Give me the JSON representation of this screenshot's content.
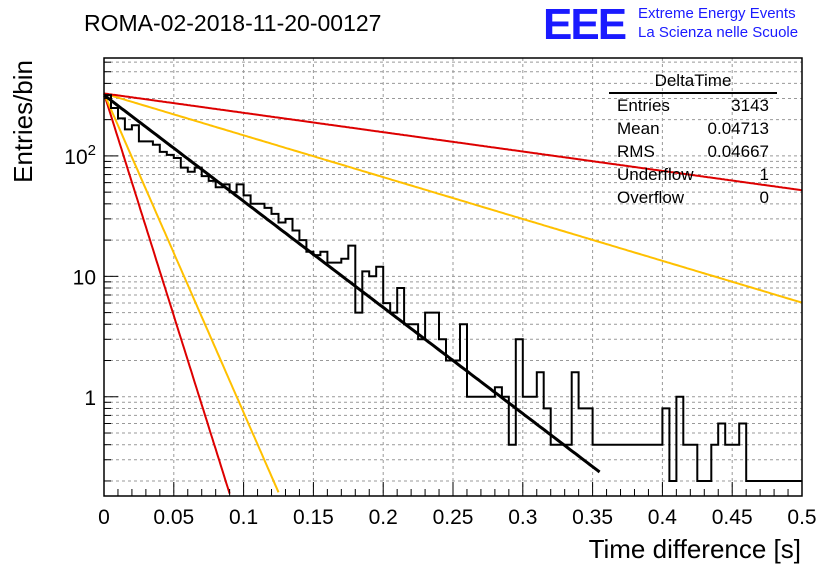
{
  "header": {
    "run_title": "ROMA-02-2018-11-20-00127",
    "logo_mark": "EEE",
    "logo_line1": "Extreme Energy Events",
    "logo_line2": "La Scienza nelle Scuole"
  },
  "stats": {
    "name": "DeltaTime",
    "rows": [
      {
        "label": "Entries",
        "value": "3143"
      },
      {
        "label": "Mean",
        "value": "0.04713"
      },
      {
        "label": "RMS",
        "value": "0.04667"
      },
      {
        "label": "Underflow",
        "value": "1"
      },
      {
        "label": "Overflow",
        "value": "0"
      }
    ]
  },
  "colors": {
    "histogram": "#000000",
    "fit": "#000000",
    "red_curves": "#dd0000",
    "yellow_curves": "#ffc000",
    "grid": "#999999",
    "logo": "#1a1aff"
  },
  "chart_data": {
    "type": "line",
    "title": "ROMA-02-2018-11-20-00127",
    "xlabel": "Time difference [s]",
    "ylabel": "Entries/bin",
    "xlim": [
      0,
      0.5
    ],
    "ylim": [
      0.15,
      650
    ],
    "yscale": "log",
    "grid": true,
    "xticks": [
      "0",
      "0.05",
      "0.1",
      "0.15",
      "0.2",
      "0.25",
      "0.3",
      "0.35",
      "0.4",
      "0.45",
      "0.5"
    ],
    "yticks": [
      "1",
      "10",
      "10^2"
    ],
    "histogram": {
      "name": "DeltaTime",
      "bin_width": 0.005,
      "x_start": 0,
      "values": [
        320,
        250,
        205,
        166,
        180,
        132,
        132,
        124,
        108,
        102,
        96,
        80,
        74,
        80,
        68,
        62,
        55,
        58,
        50,
        58,
        47,
        40,
        40,
        37,
        33,
        28,
        30,
        24,
        20,
        16,
        15,
        16,
        13,
        13,
        14,
        18,
        5,
        11,
        10,
        12,
        6,
        5,
        8,
        4,
        4,
        3,
        5,
        5,
        3,
        2,
        2,
        4,
        1,
        1,
        1,
        1,
        1.2,
        1,
        0.4,
        3,
        1,
        1,
        1.6,
        0.8,
        0.4,
        0.4,
        0.4,
        1.6,
        0.8,
        0.8,
        0.4,
        0.4,
        0.4,
        0.4,
        0.4,
        0.4,
        0.4,
        0.4,
        0.4,
        0.4,
        0.8,
        0.2,
        1,
        0.4,
        0.4,
        0.2,
        0.2,
        0.4,
        0.6,
        0.4,
        0.4,
        0.6,
        0.2,
        0.2,
        0.2,
        0.2,
        0.2,
        0.2,
        0.2,
        0.2
      ]
    },
    "fit": {
      "amplitude": 320,
      "slope": 20.3,
      "x_range": [
        0,
        0.355
      ]
    },
    "reference_curves": [
      {
        "color": "red",
        "amplitude": 330,
        "slope": 85,
        "x_range": [
          0,
          0.5
        ]
      },
      {
        "color": "yellow",
        "amplitude": 330,
        "slope": 61,
        "x_range": [
          0,
          0.5
        ]
      },
      {
        "color": "yellow",
        "amplitude": 330,
        "slope": 8.0,
        "x_range": [
          0,
          0.5
        ]
      },
      {
        "color": "red",
        "amplitude": 330,
        "slope": 3.7,
        "x_range": [
          0,
          0.5
        ]
      }
    ]
  }
}
